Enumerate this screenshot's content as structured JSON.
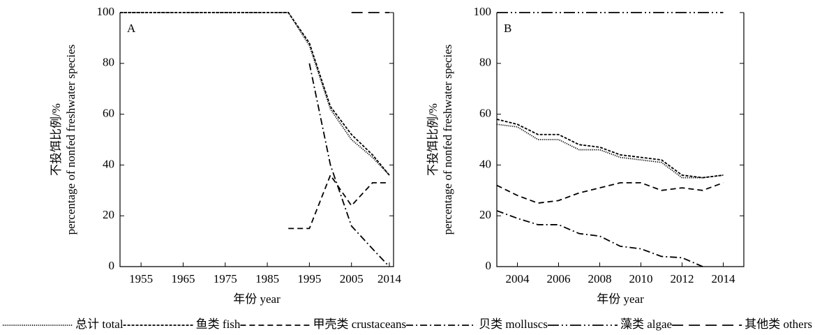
{
  "chart_data": [
    {
      "type": "line",
      "panel_label": "A",
      "x_label": "年份 year",
      "y_label": [
        "不投饵比例/%",
        "percentage of nonfed freshwater species"
      ],
      "x": [
        1950,
        1990,
        1995,
        2000,
        2005,
        2010,
        2014
      ],
      "xlim": [
        1950,
        2015
      ],
      "xticks": [
        1955,
        1965,
        1975,
        1985,
        1995,
        2005,
        2014
      ],
      "ylim": [
        0,
        100
      ],
      "yticks": [
        0,
        20,
        40,
        60,
        80,
        100
      ],
      "series": [
        {
          "name": "总计 total",
          "color": "#000000",
          "dash": "1.2,1.6",
          "values": [
            100,
            100,
            87,
            62,
            50,
            43,
            36
          ]
        },
        {
          "name": "鱼类 fish",
          "color": "#000000",
          "dash": "4,2",
          "values": [
            100,
            100,
            88,
            63,
            52,
            44,
            36
          ]
        },
        {
          "name": "甲壳类 crustaceans",
          "color": "#000000",
          "dash": "8,5",
          "values": [
            null,
            15,
            15,
            36,
            24,
            33,
            33
          ]
        },
        {
          "name": "贝类 molluscs",
          "color": "#000000",
          "dash": "10,4,2,4",
          "values": [
            null,
            null,
            80,
            40,
            16,
            7,
            0
          ]
        },
        {
          "name": "藻类 algae",
          "color": "#000000",
          "dash": "16,4,2,4,2,4",
          "values": [
            null,
            null,
            null,
            null,
            null,
            null,
            null
          ]
        },
        {
          "name": "其他类 others",
          "color": "#000000",
          "dash": "16,8",
          "values": [
            null,
            null,
            null,
            null,
            100,
            100,
            100
          ]
        }
      ]
    },
    {
      "type": "line",
      "panel_label": "B",
      "x_label": "年份 year",
      "y_label": [
        "不投饵比例/%",
        "percentage of nonfed freshwater species"
      ],
      "x": [
        2003,
        2004,
        2005,
        2006,
        2007,
        2008,
        2009,
        2010,
        2011,
        2012,
        2013,
        2014
      ],
      "xlim": [
        2003,
        2015
      ],
      "xticks": [
        2004,
        2006,
        2008,
        2010,
        2012,
        2014
      ],
      "ylim": [
        0,
        100
      ],
      "yticks": [
        0,
        20,
        40,
        60,
        80,
        100
      ],
      "series": [
        {
          "color": "#000000",
          "dash": "1.2,1.6",
          "values": [
            56,
            55,
            50,
            50,
            46,
            46,
            43,
            42,
            41,
            35,
            35,
            36
          ]
        },
        {
          "color": "#000000",
          "dash": "4,2",
          "values": [
            58,
            56,
            52,
            52,
            48,
            47,
            44,
            43,
            42,
            36,
            35,
            36
          ]
        },
        {
          "color": "#000000",
          "dash": "8,5",
          "values": [
            32,
            28,
            25,
            26,
            29,
            31,
            33,
            33,
            30,
            31,
            30,
            33
          ]
        },
        {
          "color": "#000000",
          "dash": "10,4,2,4",
          "values": [
            22,
            19,
            16.5,
            16.5,
            13,
            12,
            8,
            7,
            4,
            3.5,
            0,
            null
          ]
        },
        {
          "color": "#000000",
          "dash": "16,4,2,4,2,4",
          "values": [
            100,
            100,
            100,
            100,
            100,
            100,
            100,
            100,
            100,
            100,
            100,
            100
          ]
        },
        {
          "color": "#000000",
          "dash": "16,8",
          "values": [
            null,
            null,
            null,
            null,
            null,
            null,
            null,
            null,
            null,
            null,
            null,
            null
          ]
        }
      ]
    }
  ]
}
